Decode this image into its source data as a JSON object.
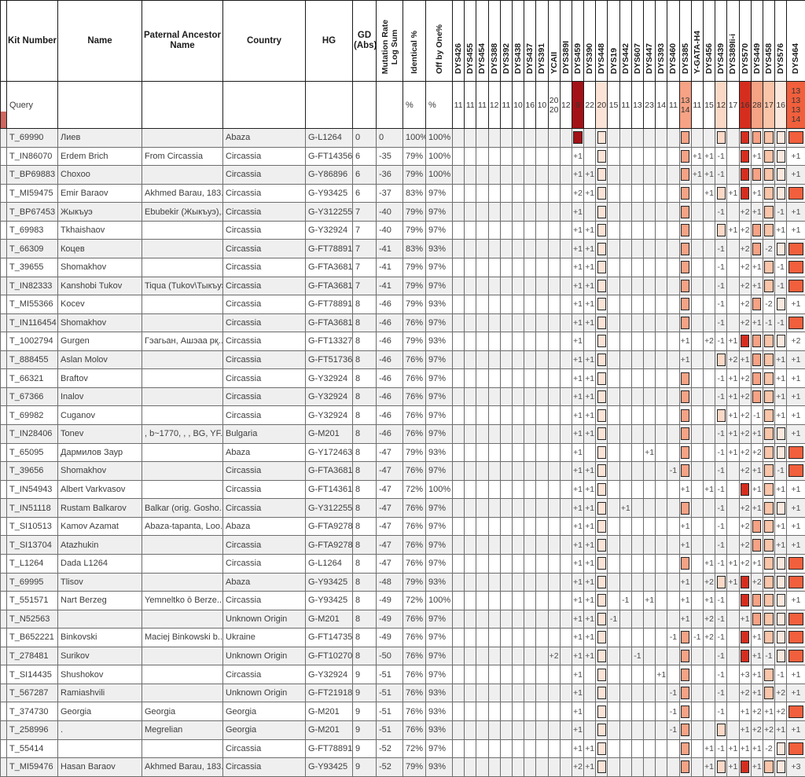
{
  "table": {
    "left_headers": [
      {
        "key": "rownum",
        "label": ""
      },
      {
        "key": "kit",
        "label": "Kit Number"
      },
      {
        "key": "name",
        "label": "Name"
      },
      {
        "key": "ancestor",
        "label": "Paternal Ancestor Name"
      },
      {
        "key": "country",
        "label": "Country"
      },
      {
        "key": "hg",
        "label": "HG"
      },
      {
        "key": "gd",
        "label": "GD (Abs)"
      }
    ],
    "vertical_headers": [
      {
        "key": "mrls",
        "label": "Mutation Rate\nLog Sum"
      },
      {
        "key": "identical",
        "label": "Identical %"
      },
      {
        "key": "offbyone",
        "label": "Off by One%"
      }
    ],
    "markers": [
      "DYS426",
      "DYS455",
      "DYS454",
      "DYS388",
      "DYS392",
      "DYS438",
      "DYS437",
      "DYS391",
      "YCAII",
      "DYS389I",
      "DYS459",
      "DYS390",
      "DYS448",
      "DYS19",
      "DYS442",
      "DYS607",
      "DYS447",
      "DYS393",
      "DYS460",
      "DYS385",
      "Y-GATA-H4",
      "DYS456",
      "DYS439",
      "DYS389Ii-i",
      "DYS570",
      "DYS449",
      "DYS458",
      "DYS576",
      "DYS464"
    ],
    "marker_colors": {
      "DYS459": "#a21217",
      "DYS448": "#fbe3d7",
      "DYS385": "#f6a284",
      "DYS439": "#fbd8c6",
      "DYS570": "#d52e1f",
      "DYS449": "#f6a284",
      "DYS458": "#fac4a8",
      "DYS576": "#fce7dd",
      "DYS464": "#f15f3c"
    },
    "query": {
      "kit": "Query",
      "identical": "%",
      "offbyone": "%",
      "markers": {
        "DYS426": "11",
        "DYS455": "11",
        "DYS454": "11",
        "DYS388": "12",
        "DYS392": "11",
        "DYS438": "10",
        "DYS437": "16",
        "DYS391": "10",
        "YCAII": "20\n20",
        "DYS389I": "12",
        "DYS459": "9",
        "DYS390": "22",
        "DYS448": "20",
        "DYS19": "15",
        "DYS442": "11",
        "DYS607": "13",
        "DYS447": "23",
        "DYS393": "14",
        "DYS460": "11",
        "DYS385": "13\n14",
        "Y-GATA-H4": "11",
        "DYS456": "15",
        "DYS439": "12",
        "DYS389Ii-i": "17",
        "DYS570": "16",
        "DYS449": "28",
        "DYS458": "17",
        "DYS576": "16",
        "DYS464": "13\n13\n13\n14"
      }
    },
    "rows": [
      {
        "kit": "T_69990",
        "name": "Лиев",
        "ancestor": "",
        "country": "Abaza",
        "hg": "G-L1264",
        "gd": "0",
        "mrls": "0",
        "identical": "100%",
        "offbyone": "100%",
        "diffs": {}
      },
      {
        "kit": "T_IN86070",
        "name": "Erdem Brich",
        "ancestor": "From Circassia",
        "country": "Circassia",
        "hg": "G-FT143564",
        "gd": "6",
        "mrls": "-35",
        "identical": "79%",
        "offbyone": "100%",
        "diffs": {
          "DYS459": "+1",
          "Y-GATA-H4": "+1",
          "DYS456": "+1",
          "DYS439": "-1",
          "DYS449": "+1",
          "DYS464": "+1"
        }
      },
      {
        "kit": "T_BP69883",
        "name": "Choxoo",
        "ancestor": "",
        "country": "Circassia",
        "hg": "G-Y86896",
        "gd": "6",
        "mrls": "-36",
        "identical": "79%",
        "offbyone": "100%",
        "diffs": {
          "DYS459": "+1",
          "DYS390": "+1",
          "Y-GATA-H4": "+1",
          "DYS456": "+1",
          "DYS439": "-1",
          "DYS464": "+1"
        }
      },
      {
        "kit": "T_MI59475",
        "name": "Emir Baraov",
        "ancestor": "Akhmed Barau, 183...",
        "country": "Circassia",
        "hg": "G-Y93425",
        "gd": "6",
        "mrls": "-37",
        "identical": "83%",
        "offbyone": "97%",
        "diffs": {
          "DYS459": "+2",
          "DYS390": "+1",
          "DYS456": "+1",
          "DYS389Ii-i": "+1",
          "DYS449": "+1"
        }
      },
      {
        "kit": "T_BP67453",
        "name": "Жыкъуэ",
        "ancestor": "Ebubekir (Жыкъуэ),...",
        "country": "Circassia",
        "hg": "G-Y312255",
        "gd": "7",
        "mrls": "-40",
        "identical": "79%",
        "offbyone": "97%",
        "diffs": {
          "DYS459": "+1",
          "DYS439": "-1",
          "DYS570": "+2",
          "DYS449": "+1",
          "DYS576": "-1",
          "DYS464": "+1"
        }
      },
      {
        "kit": "T_69983",
        "name": "Tkhaishaov",
        "ancestor": "",
        "country": "Circassia",
        "hg": "G-Y32924",
        "gd": "7",
        "mrls": "-40",
        "identical": "79%",
        "offbyone": "97%",
        "diffs": {
          "DYS459": "+1",
          "DYS390": "+1",
          "DYS389Ii-i": "+1",
          "DYS570": "+2",
          "DYS576": "+1",
          "DYS464": "+1"
        }
      },
      {
        "kit": "T_66309",
        "name": "Коцев",
        "ancestor": "",
        "country": "Circassia",
        "hg": "G-FT78891",
        "gd": "7",
        "mrls": "-41",
        "identical": "83%",
        "offbyone": "93%",
        "diffs": {
          "DYS459": "+1",
          "DYS390": "+1",
          "DYS439": "-1",
          "DYS570": "+2",
          "DYS458": "-2"
        }
      },
      {
        "kit": "T_39655",
        "name": "Shomakhov",
        "ancestor": "",
        "country": "Circassia",
        "hg": "G-FTA36818",
        "gd": "7",
        "mrls": "-41",
        "identical": "79%",
        "offbyone": "97%",
        "diffs": {
          "DYS459": "+1",
          "DYS390": "+1",
          "DYS439": "-1",
          "DYS570": "+2",
          "DYS449": "+1",
          "DYS576": "-1"
        }
      },
      {
        "kit": "T_IN82333",
        "name": "Kanshobi Tukov",
        "ancestor": "Tiqua (Tukov\\Тыкъуэ)",
        "country": "Circassia",
        "hg": "G-FTA36818",
        "gd": "7",
        "mrls": "-41",
        "identical": "79%",
        "offbyone": "97%",
        "diffs": {
          "DYS459": "+1",
          "DYS390": "+1",
          "DYS439": "-1",
          "DYS570": "+2",
          "DYS449": "+1",
          "DYS576": "-1"
        }
      },
      {
        "kit": "T_MI55366",
        "name": "Kocev",
        "ancestor": "",
        "country": "Circassia",
        "hg": "G-FT78891",
        "gd": "8",
        "mrls": "-46",
        "identical": "79%",
        "offbyone": "93%",
        "diffs": {
          "DYS459": "+1",
          "DYS390": "+1",
          "DYS439": "-1",
          "DYS570": "+2",
          "DYS458": "-2",
          "DYS464": "+1"
        }
      },
      {
        "kit": "T_IN116454",
        "name": "Shomakhov",
        "ancestor": "",
        "country": "Circassia",
        "hg": "G-FTA36818",
        "gd": "8",
        "mrls": "-46",
        "identical": "76%",
        "offbyone": "97%",
        "diffs": {
          "DYS459": "+1",
          "DYS390": "+1",
          "DYS439": "-1",
          "DYS570": "+2",
          "DYS449": "+1",
          "DYS458": "-1",
          "DYS576": "-1"
        }
      },
      {
        "kit": "T_1002794",
        "name": "Gurgen",
        "ancestor": "Гэагьан, Ашэаа рқ...",
        "country": "Circassia",
        "hg": "G-FT13327",
        "gd": "8",
        "mrls": "-46",
        "identical": "79%",
        "offbyone": "93%",
        "diffs": {
          "DYS459": "+1",
          "DYS385": "+1",
          "DYS456": "+2",
          "DYS439": "-1",
          "DYS389Ii-i": "+1",
          "DYS464": "+2"
        }
      },
      {
        "kit": "T_888455",
        "name": "Aslan Molov",
        "ancestor": "",
        "country": "Circassia",
        "hg": "G-FT51736",
        "gd": "8",
        "mrls": "-46",
        "identical": "76%",
        "offbyone": "97%",
        "diffs": {
          "DYS459": "+1",
          "DYS390": "+1",
          "DYS385": "+1",
          "DYS389Ii-i": "+2",
          "DYS570": "+1",
          "DYS576": "+1",
          "DYS464": "+1"
        }
      },
      {
        "kit": "T_66321",
        "name": "Braftov",
        "ancestor": "",
        "country": "Circassia",
        "hg": "G-Y32924",
        "gd": "8",
        "mrls": "-46",
        "identical": "76%",
        "offbyone": "97%",
        "diffs": {
          "DYS459": "+1",
          "DYS390": "+1",
          "DYS439": "-1",
          "DYS389Ii-i": "+1",
          "DYS570": "+2",
          "DYS576": "+1",
          "DYS464": "+1"
        }
      },
      {
        "kit": "T_67366",
        "name": "Inalov",
        "ancestor": "",
        "country": "Circassia",
        "hg": "G-Y32924",
        "gd": "8",
        "mrls": "-46",
        "identical": "76%",
        "offbyone": "97%",
        "diffs": {
          "DYS459": "+1",
          "DYS390": "+1",
          "DYS439": "-1",
          "DYS389Ii-i": "+1",
          "DYS570": "+2",
          "DYS576": "+1",
          "DYS464": "+1"
        }
      },
      {
        "kit": "T_69982",
        "name": "Cuganov",
        "ancestor": "",
        "country": "Circassia",
        "hg": "G-Y32924",
        "gd": "8",
        "mrls": "-46",
        "identical": "76%",
        "offbyone": "97%",
        "diffs": {
          "DYS459": "+1",
          "DYS390": "+1",
          "DYS389Ii-i": "+1",
          "DYS570": "+2",
          "DYS449": "-1",
          "DYS576": "+1",
          "DYS464": "+1"
        }
      },
      {
        "kit": "T_IN28406",
        "name": "Tonev",
        "ancestor": ", b~1770, , , BG, YF...",
        "country": "Bulgaria",
        "hg": "G-M201",
        "gd": "8",
        "mrls": "-46",
        "identical": "76%",
        "offbyone": "97%",
        "diffs": {
          "DYS459": "+1",
          "DYS390": "+1",
          "DYS439": "-1",
          "DYS389Ii-i": "+1",
          "DYS570": "+2",
          "DYS449": "+1",
          "DYS464": "+1"
        }
      },
      {
        "kit": "T_65095",
        "name": "Дармилов Заур",
        "ancestor": "",
        "country": "Abaza",
        "hg": "G-Y172463",
        "gd": "8",
        "mrls": "-47",
        "identical": "79%",
        "offbyone": "93%",
        "diffs": {
          "DYS459": "+1",
          "DYS447": "+1",
          "DYS439": "-1",
          "DYS389Ii-i": "+1",
          "DYS570": "+2",
          "DYS449": "+2"
        }
      },
      {
        "kit": "T_39656",
        "name": "Shomakhov",
        "ancestor": "",
        "country": "Circassia",
        "hg": "G-FTA36818",
        "gd": "8",
        "mrls": "-47",
        "identical": "76%",
        "offbyone": "97%",
        "diffs": {
          "DYS459": "+1",
          "DYS390": "+1",
          "DYS460": "-1",
          "DYS439": "-1",
          "DYS570": "+2",
          "DYS449": "+1",
          "DYS576": "-1"
        }
      },
      {
        "kit": "T_IN54943",
        "name": "Albert Varkvasov",
        "ancestor": "",
        "country": "Circassia",
        "hg": "G-FT143612",
        "gd": "8",
        "mrls": "-47",
        "identical": "72%",
        "offbyone": "100%",
        "diffs": {
          "DYS459": "+1",
          "DYS390": "+1",
          "DYS385": "+1",
          "DYS456": "+1",
          "DYS439": "-1",
          "DYS449": "+1",
          "DYS576": "+1",
          "DYS464": "+1"
        }
      },
      {
        "kit": "T_IN51118",
        "name": "Rustam Balkarov",
        "ancestor": "Balkar (orig. Gosho...",
        "country": "Circassia",
        "hg": "G-Y312255",
        "gd": "8",
        "mrls": "-47",
        "identical": "76%",
        "offbyone": "97%",
        "diffs": {
          "DYS459": "+1",
          "DYS390": "+1",
          "DYS442": "+1",
          "DYS439": "-1",
          "DYS570": "+2",
          "DYS449": "+1",
          "DYS464": "+1"
        }
      },
      {
        "kit": "T_SI10513",
        "name": "Kamov Azamat",
        "ancestor": "Abaza-tapanta, Loo...",
        "country": "Abaza",
        "hg": "G-FTA92785",
        "gd": "8",
        "mrls": "-47",
        "identical": "76%",
        "offbyone": "97%",
        "diffs": {
          "DYS459": "+1",
          "DYS390": "+1",
          "DYS385": "+1",
          "DYS439": "-1",
          "DYS570": "+2",
          "DYS576": "+1",
          "DYS464": "+1"
        }
      },
      {
        "kit": "T_SI13704",
        "name": "Atazhukin",
        "ancestor": "",
        "country": "Circassia",
        "hg": "G-FTA92785",
        "gd": "8",
        "mrls": "-47",
        "identical": "76%",
        "offbyone": "97%",
        "diffs": {
          "DYS459": "+1",
          "DYS390": "+1",
          "DYS385": "+1",
          "DYS439": "-1",
          "DYS570": "+2",
          "DYS576": "+1",
          "DYS464": "+1"
        }
      },
      {
        "kit": "T_L1264",
        "name": "Dada L1264",
        "ancestor": "",
        "country": "Circassia",
        "hg": "G-L1264",
        "gd": "8",
        "mrls": "-47",
        "identical": "76%",
        "offbyone": "97%",
        "diffs": {
          "DYS459": "+1",
          "DYS390": "+1",
          "DYS456": "+1",
          "DYS439": "-1",
          "DYS389Ii-i": "+1",
          "DYS570": "+2",
          "DYS449": "+1"
        }
      },
      {
        "kit": "T_69995",
        "name": "Tlisov",
        "ancestor": "",
        "country": "Abaza",
        "hg": "G-Y93425",
        "gd": "8",
        "mrls": "-48",
        "identical": "79%",
        "offbyone": "93%",
        "diffs": {
          "DYS459": "+1",
          "DYS390": "+1",
          "DYS385": "+1",
          "DYS456": "+2",
          "DYS389Ii-i": "+1",
          "DYS449": "+2"
        }
      },
      {
        "kit": "T_551571",
        "name": "Nart Berzeg",
        "ancestor": "Yemneltko ō Berze...",
        "country": "Circassia",
        "hg": "G-Y93425",
        "gd": "8",
        "mrls": "-49",
        "identical": "72%",
        "offbyone": "100%",
        "diffs": {
          "DYS459": "+1",
          "DYS390": "+1",
          "DYS442": "-1",
          "DYS447": "+1",
          "DYS385": "+1",
          "DYS456": "+1",
          "DYS439": "-1",
          "DYS464": "+1"
        }
      },
      {
        "kit": "T_N52563",
        "name": "",
        "ancestor": "",
        "country": "Unknown Origin",
        "hg": "G-M201",
        "gd": "8",
        "mrls": "-49",
        "identical": "76%",
        "offbyone": "97%",
        "diffs": {
          "DYS459": "+1",
          "DYS390": "+1",
          "DYS19": "-1",
          "DYS385": "+1",
          "DYS456": "+2",
          "DYS439": "-1",
          "DYS570": "+1"
        }
      },
      {
        "kit": "T_B652221",
        "name": "Binkovski",
        "ancestor": "Maciej Binkowski b...",
        "country": "Ukraine",
        "hg": "G-FT147353",
        "gd": "8",
        "mrls": "-49",
        "identical": "76%",
        "offbyone": "97%",
        "diffs": {
          "DYS459": "+1",
          "DYS390": "+1",
          "DYS460": "-1",
          "Y-GATA-H4": "-1",
          "DYS456": "+2",
          "DYS439": "-1",
          "DYS449": "+1"
        }
      },
      {
        "kit": "T_278481",
        "name": "Surikov",
        "ancestor": "",
        "country": "Unknown Origin",
        "hg": "G-FT102707",
        "gd": "8",
        "mrls": "-50",
        "identical": "76%",
        "offbyone": "97%",
        "diffs": {
          "YCAII": "+2",
          "DYS459": "+1",
          "DYS390": "+1",
          "DYS607": "-1",
          "DYS439": "-1",
          "DYS449": "+1",
          "DYS458": "-1"
        }
      },
      {
        "kit": "T_SI14435",
        "name": "Shushokov",
        "ancestor": "",
        "country": "Circassia",
        "hg": "G-Y32924",
        "gd": "9",
        "mrls": "-51",
        "identical": "76%",
        "offbyone": "97%",
        "diffs": {
          "DYS459": "+1",
          "DYS393": "+1",
          "DYS439": "-1",
          "DYS570": "+3",
          "DYS449": "+1",
          "DYS576": "-1",
          "DYS464": "+1"
        }
      },
      {
        "kit": "T_567287",
        "name": "Ramiashvili",
        "ancestor": "",
        "country": "Unknown Origin",
        "hg": "G-FT21918",
        "gd": "9",
        "mrls": "-51",
        "identical": "76%",
        "offbyone": "93%",
        "diffs": {
          "DYS459": "+1",
          "DYS460": "-1",
          "DYS439": "-1",
          "DYS570": "+2",
          "DYS449": "+1",
          "DYS576": "+2",
          "DYS464": "+1"
        }
      },
      {
        "kit": "T_374730",
        "name": "Georgia",
        "ancestor": "Georgia",
        "country": "Georgia",
        "hg": "G-M201",
        "gd": "9",
        "mrls": "-51",
        "identical": "76%",
        "offbyone": "93%",
        "diffs": {
          "DYS459": "+1",
          "DYS460": "-1",
          "DYS439": "-1",
          "DYS570": "+1",
          "DYS449": "+2",
          "DYS458": "+1",
          "DYS576": "+2"
        }
      },
      {
        "kit": "T_258996",
        "name": ".",
        "ancestor": "Megrelian",
        "country": "Georgia",
        "hg": "G-M201",
        "gd": "9",
        "mrls": "-51",
        "identical": "76%",
        "offbyone": "93%",
        "diffs": {
          "DYS459": "+1",
          "DYS460": "-1",
          "DYS570": "+1",
          "DYS449": "+2",
          "DYS458": "+2",
          "DYS576": "+1",
          "DYS464": "+1"
        }
      },
      {
        "kit": "T_55414",
        "name": "",
        "ancestor": "",
        "country": "Circassia",
        "hg": "G-FT78891",
        "gd": "9",
        "mrls": "-52",
        "identical": "72%",
        "offbyone": "97%",
        "diffs": {
          "DYS459": "+1",
          "DYS390": "+1",
          "DYS456": "+1",
          "DYS439": "-1",
          "DYS389Ii-i": "+1",
          "DYS570": "+1",
          "DYS449": "+1",
          "DYS458": "-2"
        }
      },
      {
        "kit": "T_MI59476",
        "name": "Hasan Baraov",
        "ancestor": "Akhmed Barau, 183...",
        "country": "Circassia",
        "hg": "G-Y93425",
        "gd": "9",
        "mrls": "-52",
        "identical": "79%",
        "offbyone": "93%",
        "diffs": {
          "DYS459": "+2",
          "DYS390": "+1",
          "DYS456": "+1",
          "DYS389Ii-i": "+1",
          "DYS449": "+1",
          "DYS464": "+3"
        }
      }
    ]
  }
}
